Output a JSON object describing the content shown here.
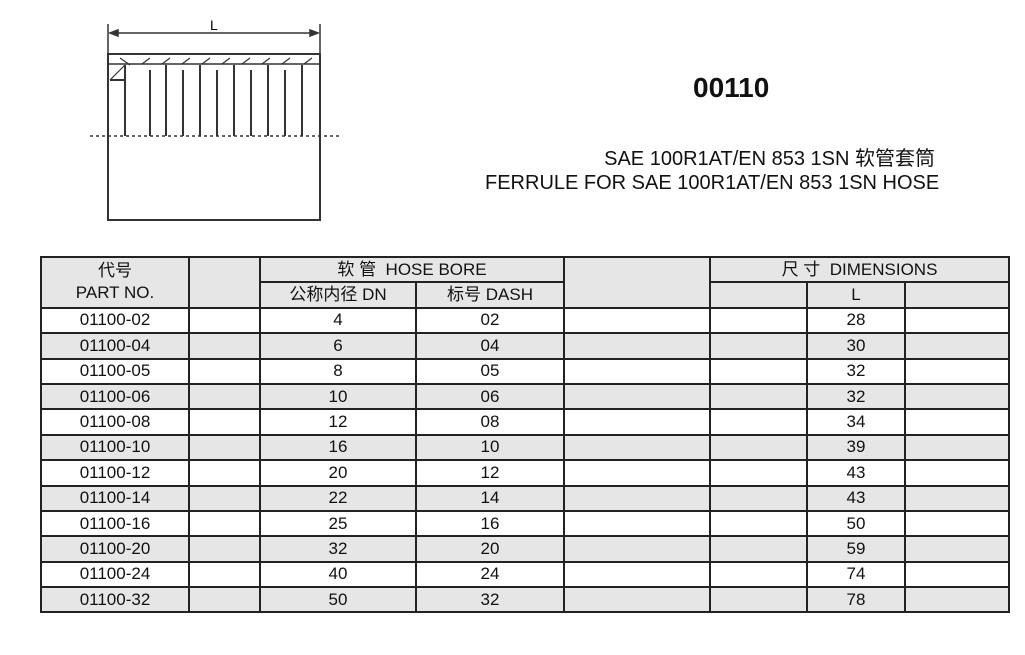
{
  "product_code": "00110",
  "title_cn": "SAE 100R1AT/EN 853 1SN 软管套筒",
  "title_en": "FERRULE FOR SAE 100R1AT/EN 853 1SN HOSE",
  "drawing": {
    "dimension_label": "L"
  },
  "table": {
    "header": {
      "part_cn": "代号",
      "part_en": "PART NO.",
      "hose_bore": "软 管  HOSE BORE",
      "dn": "公称内径 DN",
      "dash": "标号 DASH",
      "dimensions": "尺 寸  DIMENSIONS",
      "l": "L"
    },
    "rows": [
      {
        "part": "01100-02",
        "dn": "4",
        "dash": "02",
        "l": "28"
      },
      {
        "part": "01100-04",
        "dn": "6",
        "dash": "04",
        "l": "30"
      },
      {
        "part": "01100-05",
        "dn": "8",
        "dash": "05",
        "l": "32"
      },
      {
        "part": "01100-06",
        "dn": "10",
        "dash": "06",
        "l": "32"
      },
      {
        "part": "01100-08",
        "dn": "12",
        "dash": "08",
        "l": "34"
      },
      {
        "part": "01100-10",
        "dn": "16",
        "dash": "10",
        "l": "39"
      },
      {
        "part": "01100-12",
        "dn": "20",
        "dash": "12",
        "l": "43"
      },
      {
        "part": "01100-14",
        "dn": "22",
        "dash": "14",
        "l": "43"
      },
      {
        "part": "01100-16",
        "dn": "25",
        "dash": "16",
        "l": "50"
      },
      {
        "part": "01100-20",
        "dn": "32",
        "dash": "20",
        "l": "59"
      },
      {
        "part": "01100-24",
        "dn": "40",
        "dash": "24",
        "l": "74"
      },
      {
        "part": "01100-32",
        "dn": "50",
        "dash": "32",
        "l": "78"
      }
    ]
  }
}
